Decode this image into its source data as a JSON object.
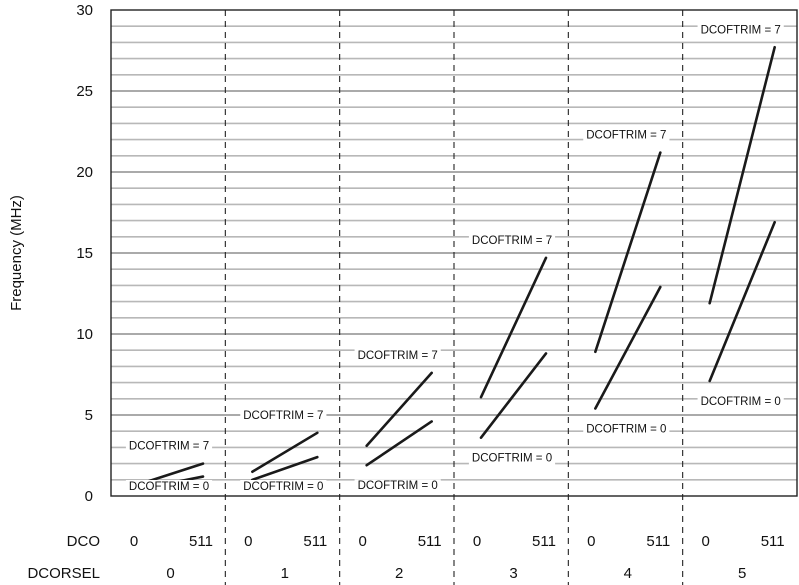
{
  "chart_data": {
    "type": "line",
    "title": "",
    "ylabel": "Frequency (MHz)",
    "ylim": [
      0,
      30
    ],
    "yticks": [
      "0",
      "5",
      "10",
      "15",
      "20",
      "25",
      "30"
    ],
    "grid": true,
    "row_labels": {
      "dco": "DCO",
      "dcorsel": "DCORSEL"
    },
    "dco_ticks": [
      "0",
      "511"
    ],
    "groups": [
      {
        "dcorsel": "0",
        "trim7": {
          "label": "DCOFTRIM = 7",
          "from": 0.7,
          "to": 2.0
        },
        "trim0": {
          "label": "DCOFTRIM = 0",
          "from": 0.4,
          "to": 1.2
        }
      },
      {
        "dcorsel": "1",
        "trim7": {
          "label": "DCOFTRIM = 7",
          "from": 1.5,
          "to": 3.9
        },
        "trim0": {
          "label": "DCOFTRIM = 0",
          "from": 1.0,
          "to": 2.4
        }
      },
      {
        "dcorsel": "2",
        "trim7": {
          "label": "DCOFTRIM = 7",
          "from": 3.1,
          "to": 7.6
        },
        "trim0": {
          "label": "DCOFTRIM = 0",
          "from": 1.9,
          "to": 4.6
        }
      },
      {
        "dcorsel": "3",
        "trim7": {
          "label": "DCOFTRIM = 7",
          "from": 6.1,
          "to": 14.7
        },
        "trim0": {
          "label": "DCOFTRIM = 0",
          "from": 3.6,
          "to": 8.8
        }
      },
      {
        "dcorsel": "4",
        "trim7": {
          "label": "DCOFTRIM = 7",
          "from": 8.9,
          "to": 21.2
        },
        "trim0": {
          "label": "DCOFTRIM = 0",
          "from": 5.4,
          "to": 12.9
        }
      },
      {
        "dcorsel": "5",
        "trim7": {
          "label": "DCOFTRIM = 7",
          "from": 11.9,
          "to": 27.7
        },
        "trim0": {
          "label": "DCOFTRIM = 0",
          "from": 7.1,
          "to": 16.9
        }
      }
    ]
  }
}
